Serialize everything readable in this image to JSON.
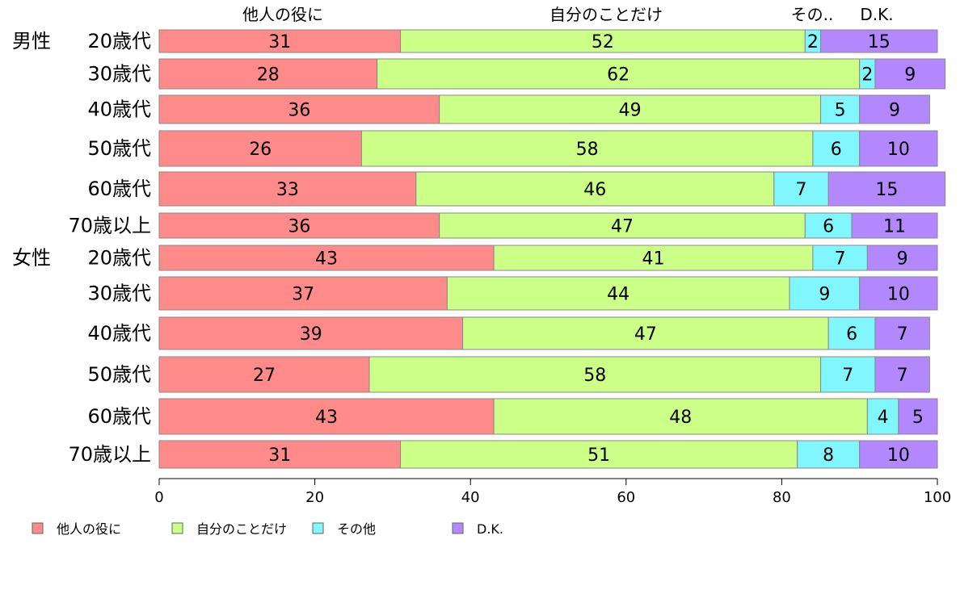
{
  "chart_data": {
    "type": "bar",
    "orientation": "horizontal",
    "stacked": true,
    "xlim": [
      0,
      100
    ],
    "x_ticks": [
      "0",
      "20",
      "40",
      "60",
      "80",
      "100"
    ],
    "top_labels": [
      "他人の役に",
      "自分のことだけ",
      "その..",
      "D.K."
    ],
    "categories": [
      {
        "group": "男性",
        "label": "20歳代"
      },
      {
        "group": "",
        "label": "30歳代"
      },
      {
        "group": "",
        "label": "40歳代"
      },
      {
        "group": "",
        "label": "50歳代"
      },
      {
        "group": "",
        "label": "60歳代"
      },
      {
        "group": "",
        "label": "70歳以上"
      },
      {
        "group": "女性",
        "label": "20歳代"
      },
      {
        "group": "",
        "label": "30歳代"
      },
      {
        "group": "",
        "label": "40歳代"
      },
      {
        "group": "",
        "label": "50歳代"
      },
      {
        "group": "",
        "label": "60歳代"
      },
      {
        "group": "",
        "label": "70歳以上"
      }
    ],
    "series": [
      {
        "name": "他人の役に",
        "color": "#ff8a8a",
        "values": [
          31,
          28,
          36,
          26,
          33,
          36,
          43,
          37,
          39,
          27,
          43,
          31
        ]
      },
      {
        "name": "自分のことだけ",
        "color": "#ccff88",
        "values": [
          52,
          62,
          49,
          58,
          46,
          47,
          41,
          44,
          47,
          58,
          48,
          51
        ]
      },
      {
        "name": "その他",
        "color": "#80f7ff",
        "values": [
          2,
          2,
          5,
          6,
          7,
          6,
          7,
          9,
          6,
          7,
          4,
          8
        ]
      },
      {
        "name": "D.K.",
        "color": "#b388ff",
        "values": [
          15,
          9,
          9,
          10,
          15,
          11,
          9,
          10,
          7,
          7,
          5,
          10
        ]
      }
    ],
    "legend": {
      "position": "bottom",
      "labels": [
        "他人の役に",
        "自分のことだけ",
        "その他",
        "D.K."
      ]
    },
    "grid": false
  }
}
